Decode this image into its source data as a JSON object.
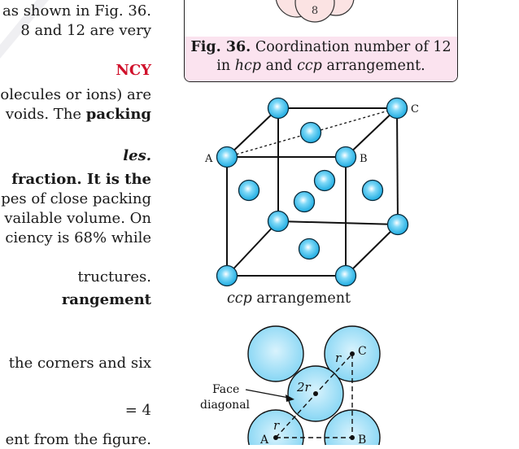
{
  "left_text": {
    "l1": "as shown in Fig. 36.",
    "l2": "8 and 12 are very",
    "heading": "NCY",
    "l4": "olecules or ions) are",
    "l5a": "voids. The ",
    "l5b": "packing",
    "l6": "les.",
    "l7": "fraction. It is the",
    "l8": "pes of close packing",
    "l9": "vailable volume. On",
    "l10": "ciency is 68% while",
    "l11": "tructures.",
    "l12": "rangement",
    "l13": "the corners and six",
    "l14": "= 4",
    "l15": "ent from the figure."
  },
  "fig36": {
    "label": "Fig. 36.",
    "caption_1": "Coordination number of 12",
    "caption_2_a": "in ",
    "caption_2_hcp": "hcp",
    "caption_2_b": " and ",
    "caption_2_ccp": "ccp",
    "caption_2_c": " arrangement."
  },
  "cube_fig": {
    "label_a": "A",
    "label_b": "B",
    "label_c": "C",
    "caption_ital": "ccp",
    "caption_rest": " arrangement"
  },
  "face_fig": {
    "label_face": "Face",
    "label_diagonal": "diagonal",
    "label_r_top": "r",
    "label_2r": "2r",
    "label_r_bottom": "r",
    "label_a": "A",
    "label_b": "B",
    "label_c": "C"
  },
  "colors": {
    "sphere_fill": "#3fc4f0",
    "heading_red": "#d0112b",
    "caption_bg": "#fbe3ef"
  }
}
